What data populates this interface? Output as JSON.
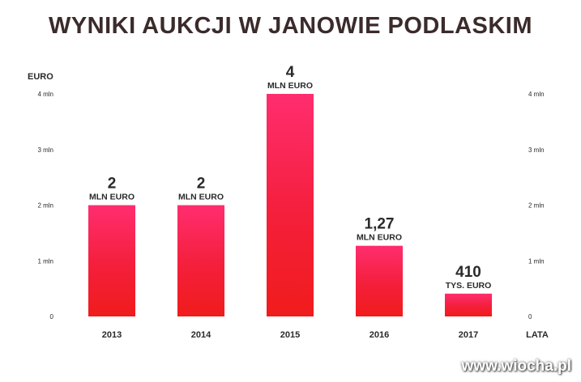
{
  "title": "WYNIKI AUKCJI W JANOWIE PODLASKIM",
  "watermark": "www.wiocha.pl",
  "colors": {
    "bar_top": "#ff2d6f",
    "bar_bottom": "#f01c1c",
    "text": "#2a2a2a",
    "title": "#3b2b2b",
    "grid": "#d8d8d8"
  },
  "chart_data": {
    "type": "bar",
    "title": "WYNIKI AUKCJI W JANOWIE PODLASKIM",
    "ylabel": "EURO",
    "xlabel": "LATA",
    "categories": [
      "2013",
      "2014",
      "2015",
      "2016",
      "2017"
    ],
    "values": [
      2000000,
      2000000,
      4000000,
      1270000,
      410000
    ],
    "ylim": [
      0,
      4000000
    ],
    "y_ticks": [
      "0",
      "1 mln",
      "2 mln",
      "3 mln",
      "4 mln"
    ],
    "y_tick_values": [
      0,
      1000000,
      2000000,
      3000000,
      4000000
    ],
    "y_axis_both_sides": true,
    "data_labels": [
      {
        "value": "2",
        "unit": "MLN EURO"
      },
      {
        "value": "2",
        "unit": "MLN EURO"
      },
      {
        "value": "4",
        "unit": "MLN EURO"
      },
      {
        "value": "1,27",
        "unit": "MLN EURO"
      },
      {
        "value": "410",
        "unit": "TYS. EURO"
      }
    ],
    "grid": false,
    "legend": "none"
  }
}
